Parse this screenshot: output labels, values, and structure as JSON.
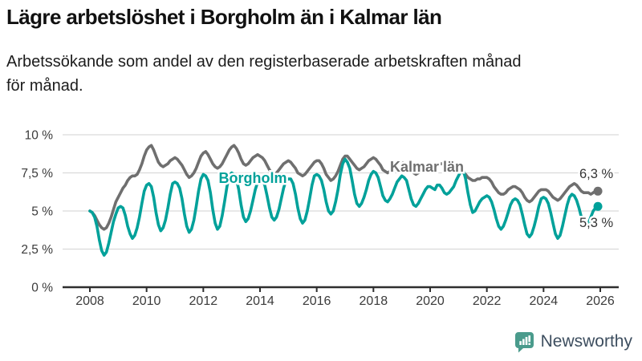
{
  "header": {
    "title": "Lägre arbetslöshet i Borgholm än i Kalmar län",
    "subtitle_lines": [
      "Arbetssökande som andel av den registerbaserade arbetskraften månad",
      "för månad."
    ]
  },
  "chart_data": {
    "type": "line",
    "title": "Lägre arbetslöshet i Borgholm än i Kalmar län",
    "subtitle": "Arbetssökande som andel av den registerbaserade arbetskraften månad för månad.",
    "x_unit": "monthly from January 2008 to December 2025",
    "grid": true,
    "legend_position": "inline-labels",
    "ylim": [
      0,
      10.5
    ],
    "y_ticks": [
      {
        "value": 0,
        "label": "0 %"
      },
      {
        "value": 2.5,
        "label": "2,5 %"
      },
      {
        "value": 5,
        "label": "5 %"
      },
      {
        "value": 7.5,
        "label": "7,5 %"
      },
      {
        "value": 10,
        "label": "10 %"
      }
    ],
    "x_ticks": [
      {
        "year": 2008,
        "label": "2008"
      },
      {
        "year": 2010,
        "label": "2010"
      },
      {
        "year": 2012,
        "label": "2012"
      },
      {
        "year": 2014,
        "label": "2014"
      },
      {
        "year": 2016,
        "label": "2016"
      },
      {
        "year": 2018,
        "label": "2018"
      },
      {
        "year": 2020,
        "label": "2020"
      },
      {
        "year": 2022,
        "label": "2022"
      },
      {
        "year": 2024,
        "label": "2024"
      },
      {
        "year": 2026,
        "label": "2026"
      }
    ],
    "series": [
      {
        "id": "kalmar-lan",
        "name": "Kalmar län",
        "color": "#6F6F6F",
        "latest_value_label": "6,3 %",
        "latest_value": 6.3,
        "values": [
          5.0,
          4.9,
          4.7,
          4.4,
          4.1,
          3.9,
          3.8,
          3.9,
          4.2,
          4.6,
          5.1,
          5.6,
          5.9,
          6.2,
          6.5,
          6.7,
          7.0,
          7.2,
          7.3,
          7.3,
          7.4,
          7.7,
          8.1,
          8.6,
          9.0,
          9.2,
          9.3,
          9.0,
          8.6,
          8.2,
          8.0,
          7.9,
          8.0,
          8.1,
          8.3,
          8.4,
          8.5,
          8.4,
          8.2,
          8.0,
          7.7,
          7.4,
          7.2,
          7.3,
          7.5,
          7.8,
          8.2,
          8.6,
          8.8,
          8.9,
          8.7,
          8.4,
          8.1,
          7.9,
          7.8,
          7.9,
          8.1,
          8.4,
          8.7,
          9.0,
          9.2,
          9.3,
          9.1,
          8.8,
          8.4,
          8.1,
          8.0,
          8.1,
          8.3,
          8.5,
          8.6,
          8.7,
          8.6,
          8.5,
          8.3,
          8.0,
          7.7,
          7.5,
          7.4,
          7.5,
          7.7,
          7.9,
          8.1,
          8.2,
          8.3,
          8.2,
          8.0,
          7.8,
          7.5,
          7.4,
          7.3,
          7.4,
          7.6,
          7.8,
          8.0,
          8.2,
          8.3,
          8.3,
          8.1,
          7.8,
          7.4,
          7.2,
          7.0,
          7.1,
          7.3,
          7.6,
          8.0,
          8.4,
          8.6,
          8.6,
          8.4,
          8.2,
          8.0,
          7.8,
          7.7,
          7.8,
          7.9,
          8.1,
          8.3,
          8.4,
          8.5,
          8.4,
          8.2,
          8.0,
          7.7,
          7.6,
          7.5,
          7.6,
          7.7,
          7.9,
          8.1,
          8.2,
          8.2,
          8.1,
          8.0,
          7.8,
          7.6,
          7.5,
          7.4,
          7.5,
          7.6,
          7.7,
          7.8,
          7.9,
          7.9,
          7.8,
          7.8,
          8.0,
          8.1,
          8.1,
          8.0,
          7.9,
          7.8,
          7.7,
          7.7,
          7.7,
          7.7,
          7.6,
          7.5,
          7.4,
          7.2,
          7.1,
          7.0,
          7.0,
          7.1,
          7.1,
          7.2,
          7.2,
          7.2,
          7.1,
          6.9,
          6.6,
          6.4,
          6.2,
          6.1,
          6.1,
          6.2,
          6.4,
          6.5,
          6.6,
          6.6,
          6.5,
          6.4,
          6.2,
          5.9,
          5.7,
          5.6,
          5.7,
          5.9,
          6.1,
          6.3,
          6.4,
          6.4,
          6.4,
          6.3,
          6.1,
          5.9,
          5.8,
          5.7,
          5.8,
          6.0,
          6.2,
          6.4,
          6.6,
          6.7,
          6.8,
          6.7,
          6.5,
          6.3,
          6.2,
          6.2,
          6.2,
          6.1,
          6.2,
          6.3,
          6.3
        ]
      },
      {
        "id": "borgholm",
        "name": "Borgholm",
        "color": "#00A19A",
        "latest_value_label": "5,3 %",
        "latest_value": 5.3,
        "values": [
          5.0,
          4.9,
          4.6,
          4.0,
          3.1,
          2.4,
          2.1,
          2.3,
          2.9,
          3.6,
          4.3,
          4.8,
          5.2,
          5.3,
          5.2,
          4.7,
          4.0,
          3.5,
          3.2,
          3.4,
          3.9,
          4.6,
          5.5,
          6.3,
          6.7,
          6.8,
          6.6,
          5.9,
          4.9,
          4.1,
          3.7,
          3.9,
          4.4,
          5.2,
          6.1,
          6.8,
          6.9,
          6.8,
          6.5,
          5.8,
          4.8,
          4.0,
          3.6,
          3.8,
          4.4,
          5.3,
          6.3,
          7.1,
          7.4,
          7.3,
          7.0,
          6.2,
          5.1,
          4.2,
          3.8,
          4.0,
          4.7,
          5.6,
          6.6,
          7.3,
          7.5,
          7.4,
          7.1,
          6.4,
          5.4,
          4.6,
          4.3,
          4.5,
          5.0,
          5.7,
          6.4,
          6.9,
          7.0,
          7.0,
          6.7,
          6.0,
          5.2,
          4.6,
          4.4,
          4.6,
          5.1,
          5.8,
          6.5,
          7.0,
          7.1,
          7.1,
          6.8,
          6.1,
          5.2,
          4.5,
          4.2,
          4.4,
          5.0,
          5.8,
          6.7,
          7.3,
          7.4,
          7.3,
          7.0,
          6.4,
          5.6,
          5.0,
          4.8,
          5.0,
          5.6,
          6.4,
          7.4,
          8.1,
          8.4,
          8.2,
          7.8,
          7.0,
          6.1,
          5.5,
          5.3,
          5.5,
          5.9,
          6.4,
          7.0,
          7.4,
          7.6,
          7.5,
          7.2,
          6.6,
          6.0,
          5.7,
          5.6,
          5.8,
          6.1,
          6.5,
          6.9,
          7.1,
          7.3,
          7.2,
          7.0,
          6.4,
          5.8,
          5.4,
          5.3,
          5.5,
          5.8,
          6.1,
          6.4,
          6.6,
          6.6,
          6.5,
          6.4,
          6.7,
          6.7,
          6.5,
          6.2,
          6.1,
          6.2,
          6.4,
          6.6,
          7.0,
          7.3,
          7.6,
          7.7,
          7.1,
          6.2,
          5.4,
          4.9,
          5.0,
          5.3,
          5.6,
          5.8,
          5.9,
          6.0,
          5.9,
          5.6,
          5.1,
          4.5,
          4.0,
          3.8,
          4.0,
          4.4,
          4.9,
          5.4,
          5.7,
          5.8,
          5.7,
          5.4,
          4.8,
          4.1,
          3.5,
          3.3,
          3.5,
          4.0,
          4.6,
          5.3,
          5.8,
          5.9,
          5.8,
          5.5,
          4.9,
          4.2,
          3.5,
          3.2,
          3.4,
          4.0,
          4.7,
          5.4,
          5.9,
          6.1,
          6.0,
          5.7,
          5.2,
          4.6,
          4.2,
          4.0,
          4.2,
          4.6,
          5.0,
          5.2,
          5.3
        ]
      }
    ]
  },
  "footer": {
    "brand": "Newsworthy",
    "logo_color": "#4A9B8C",
    "brand_text_color": "#3D4E5F"
  },
  "colors": {
    "borgholm_line": "#00A19A",
    "kalmar_line": "#6F6F6F",
    "gridline": "#DADADA",
    "axis": "#2E2E2E",
    "axis_text": "#3B3B3B"
  }
}
